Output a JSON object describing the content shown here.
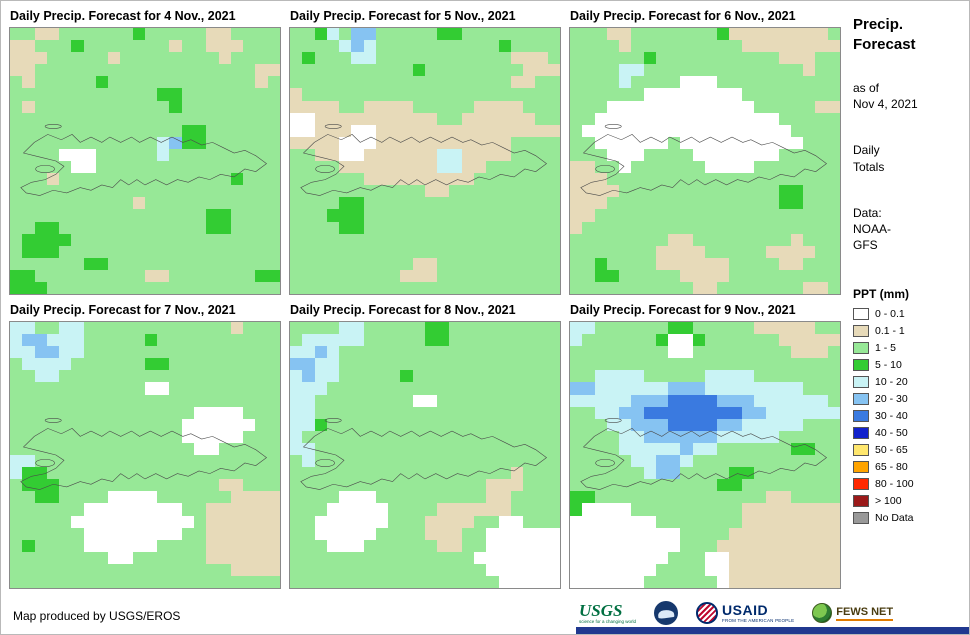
{
  "palette": {
    "w": "#ffffff",
    "t": "#e7dab9",
    "g": "#97e897",
    "G": "#33cc33",
    "c": "#c9f3f5",
    "b": "#86c3f2",
    "B": "#3a7ae0",
    "N": "#1222cc"
  },
  "panels": [
    {
      "title": "Daily Precip. Forecast for 4 Nov., 2021",
      "grid": [
        "ggttggggggGgggggttgggg",
        "ttgggGgggggggtggtttggg",
        "tttgggggtggggggggtgggg",
        "ttggggggggggggggggggtt",
        "gtgggggGggggggggggggtg",
        "ggggggggggggGGgggggggg",
        "gtgggggggggggGgggggggg",
        "gggggggggggggggggggggg",
        "ggggggggggggggGGgggggg",
        "ggggggggggggcbGGgggggg",
        "ggggwwwgggggcggggggggg",
        "gggggwwggggggggggggggg",
        "gggtggggggggggggggGggg",
        "gggggggggggggggggggggg",
        "ggggggggggtggggggggggg",
        "ggggggggggggggggGGgggg",
        "ggGGggggggggggggGGgggg",
        "gGGGGggggggggggggggggg",
        "gGGGgggggggggggggggggg",
        "ggggggGGgggggggggggggg",
        "GGgggggggggttgggggggGG",
        "GGGggggggggggggggggggg"
      ]
    },
    {
      "title": "Daily Precip. Forecast for 5 Nov., 2021",
      "grid": [
        "ggGcgbbgggggGGgggggggg",
        "ggggcbcggggggggggGgggg",
        "gGgggccgggggggggggtttg",
        "ggggggggggGggggggggttt",
        "ggggggggggggggggggttgg",
        "tggggggggggggggggggggg",
        "ttttggttttgggggttttggg",
        "wwttttttttttggttttttgg",
        "wwtttwwttttttttttttttt",
        "ttttwwwtttttttttttgggg",
        "ggttwwttttttccttttgggg",
        "ggggttttttttccttgggggg",
        "ggggggtttttttttggggggg",
        "gggggggggggttggggggggg",
        "ggggGGgggggggggggggggg",
        "gggGGGgggggggggggggggg",
        "ggggGGgggggggggggggggg",
        "gggggggggggggggggggggg",
        "gggggggggggggggggggggg",
        "ggggggggggttgggggggggg",
        "gggggggggtttgggggggggg",
        "gggggggggggggggggggggg"
      ]
    },
    {
      "title": "Daily Precip. Forecast for 6 Nov., 2021",
      "grid": [
        "gggttgggggggGttttttttg",
        "ggggtgggggggggtttttttt",
        "ggggggGggggggggggtttgg",
        "ggggccgggggggggggggtgg",
        "ggggcggggwwwgggggggggg",
        "ggggggwwwwwwwwgggggggg",
        "gggwwwwwwwwwwwwgggggtt",
        "ggwwwwwwwwwwwwwwwggggg",
        "gwwwwwwwwwwwwwwwwwgggg",
        "ggwwwwwwgwwwwwwwwwwggg",
        "gggwwwggggwwwwwwwggggg",
        "ttggwggggggwwwwggggggg",
        "tttggggggggggggggggggg",
        "ttttgggggggggggggGGggg",
        "tttggggggggggggggGGggg",
        "ttgggggggggggggggggggg",
        "tggggggggggggggggggggg",
        "ggggggggttggggggggtggg",
        "gggggggttttgggggttttgg",
        "ggGggggttttttggggttggg",
        "ggGGgggggttttggggggggg",
        "ggggggggggttgggggggttg"
      ]
    },
    {
      "title": "Daily Precip. Forecast for 7 Nov., 2021",
      "grid": [
        "ccggccggggggggggggtggg",
        "cbbcccgggggGgggggggggg",
        "ccbbccgggggggggggggggg",
        "gccccggggggGGggggggggg",
        "ggccgggggggggggggggggg",
        "gggggggggggwwggggggggg",
        "gggggggggggggggggggggg",
        "gggggggggggggggwwwwggg",
        "ggggggggggggggwwwwwwgg",
        "ggggggggggggggwwwwwggg",
        "gggggggggggggggwwggggg",
        "ccgggggggggggggggggggg",
        "cGGggggggggggggggggggg",
        "gGGGgggggggggggggttggg",
        "ggGGggggwwwwggggggtttt",
        "ggggggwwwwwwwwggtttttt",
        "gggggwwwwwwwwwwgtttttt",
        "ggggggwwwwwwwwggtttttt",
        "gGggggwwwwwwggggtttttt",
        "ggggggggwwggggggtttttt",
        "ggggggggggggggggggtttt",
        "gggggggggggggggggggggg"
      ]
    },
    {
      "title": "Daily Precip. Forecast for 8 Nov., 2021",
      "grid": [
        "ggggccgggggGGggggggggg",
        "gcccccgggggGGggggggggg",
        "ccbcgggggggggggggggggg",
        "bbccgggggggggggggggggg",
        "cbccgggggGgggggggggggg",
        "cccggggggggggggggggggg",
        "ccggggggggwwgggggggggg",
        "ccgggggggggggggggggggg",
        "ccGggggggggggggggggggg",
        "cggggggggggggggggggggg",
        "ccgggggggggggggggggggg",
        "gcgggggggggggggggggggg",
        "ggggggggggggggggggtggg",
        "ggggggggggggggggtttggg",
        "ggggwwwgggggggggttgggg",
        "gggwwwwwggggttttttgggg",
        "ggwwwwwwgggttttggwwggg",
        "ggwwwwwggggtttggwwwwww",
        "gggwwwggggggttggwwwwww",
        "gggggggggggggggwwwwwww",
        "ggggggggggggggggwwwwww",
        "gggggggggggggggggwwwww"
      ]
    },
    {
      "title": "Daily Precip. Forecast for 9 Nov., 2021",
      "grid": [
        "ccggggggGGgggggtttttgg",
        "cggggggGwwGggggggttttt",
        "ggggggggwwggggggggtttg",
        "gggggggggggggggggggggg",
        "ggccccgggggccccggggggg",
        "bbccccccbbbccccccccggg",
        "cccccbbbBBBBbbbccccccg",
        "ggccbbBBBBBBBBbbcccccc",
        "gggccbbbBBBBbbcccccggg",
        "ggggccbbbbbbcccccggggg",
        "ggggcccccbccggggggGGgg",
        "gggggccbbcgggggggggggg",
        "ggggggcbbggggGGggggggg",
        "ggggggggggggGGgggggggg",
        "GGggggggggggggggttgggg",
        "Gwwwwgggggggggtttttttt",
        "wwwwwwwgggggggtttttttt",
        "wwwwwwwwwggggttttttttt",
        "wwwwwwwwwgggtttttttttt",
        "wwwwwwwwgggwwttttttttt",
        "wwwwwwwggggwwttttttttt",
        "wwwwwwggggggwttttttttt"
      ]
    }
  ],
  "sidebar": {
    "title": "Precip.\nForecast",
    "as_of": "as of\nNov 4, 2021",
    "totals": "Daily\nTotals",
    "data_source": "Data:\nNOAA-\nGFS",
    "legend_title": "PPT (mm)",
    "legend": [
      {
        "label": "0 - 0.1",
        "color": "#ffffff"
      },
      {
        "label": "0.1 - 1",
        "color": "#e7dab9"
      },
      {
        "label": "1 - 5",
        "color": "#97e897"
      },
      {
        "label": "5 - 10",
        "color": "#33cc33"
      },
      {
        "label": "10 - 20",
        "color": "#c9f3f5"
      },
      {
        "label": "20 - 30",
        "color": "#86c3f2"
      },
      {
        "label": "30 - 40",
        "color": "#3a7ae0"
      },
      {
        "label": "40 - 50",
        "color": "#1222cc"
      },
      {
        "label": "50 - 65",
        "color": "#ffe76e"
      },
      {
        "label": "65 - 80",
        "color": "#ffa400"
      },
      {
        "label": "80 - 100",
        "color": "#ff2800"
      },
      {
        "label": "> 100",
        "color": "#9b1a1a"
      },
      {
        "label": "No Data",
        "color": "#999999"
      }
    ]
  },
  "footer": {
    "credit": "Map produced by USGS/EROS",
    "logos": {
      "usgs": {
        "name": "USGS",
        "tagline": "science for a changing world"
      },
      "usaid": {
        "name": "USAID",
        "tagline": "FROM THE AMERICAN PEOPLE"
      },
      "fewsnet": {
        "name": "FEWS NET"
      }
    }
  }
}
